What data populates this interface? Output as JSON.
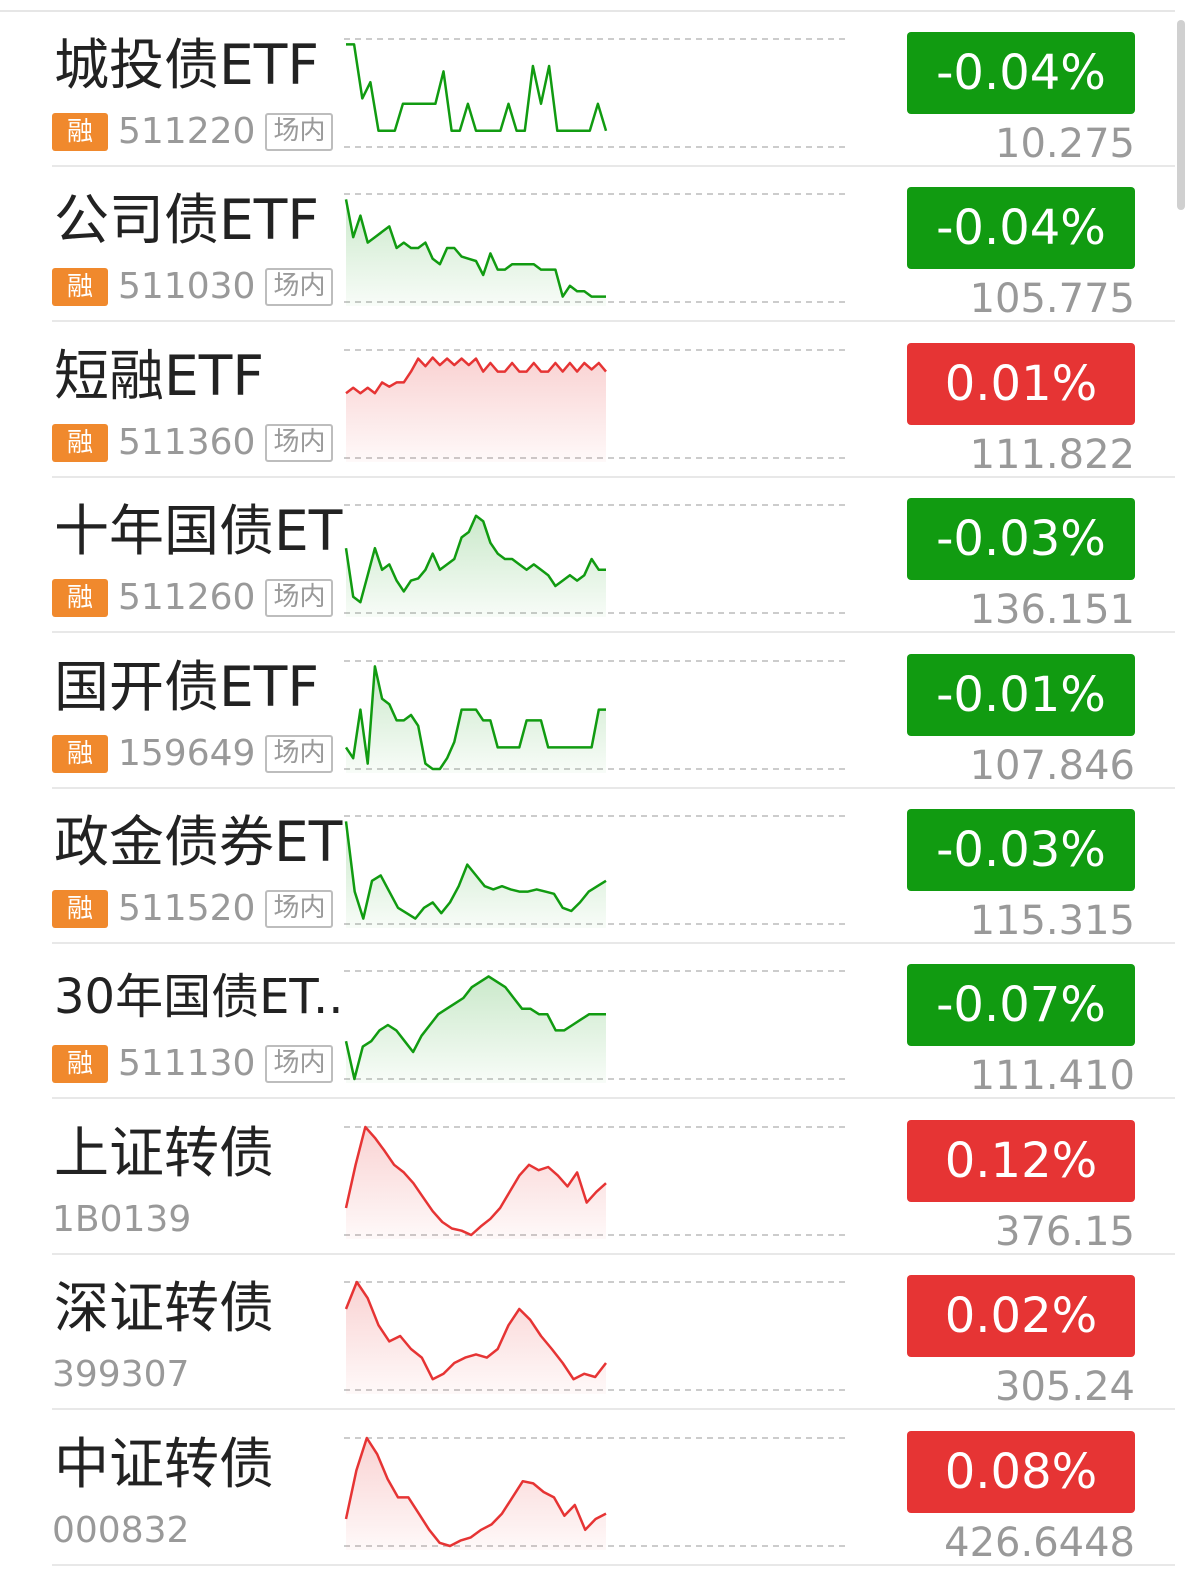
{
  "colors": {
    "down": "#119b11",
    "up": "#e63434",
    "margin_badge": "#f0892d"
  },
  "rows": [
    {
      "name": "城投债ETF",
      "code": "511220",
      "margin_badge": "融",
      "exchange_badge": "场内",
      "change": "-0.04%",
      "direction": "down",
      "price": "10.275",
      "spark": [
        0.95,
        0.95,
        0.45,
        0.6,
        0.15,
        0.15,
        0.15,
        0.4,
        0.4,
        0.4,
        0.4,
        0.4,
        0.7,
        0.15,
        0.15,
        0.4,
        0.15,
        0.15,
        0.15,
        0.15,
        0.4,
        0.15,
        0.15,
        0.75,
        0.4,
        0.75,
        0.15,
        0.15,
        0.15,
        0.15,
        0.15,
        0.4,
        0.15
      ],
      "spark_fill": false
    },
    {
      "name": "公司债ETF",
      "code": "511030",
      "margin_badge": "融",
      "exchange_badge": "场内",
      "change": "-0.04%",
      "direction": "down",
      "price": "105.775",
      "spark": [
        0.95,
        0.6,
        0.8,
        0.55,
        0.6,
        0.65,
        0.7,
        0.5,
        0.55,
        0.5,
        0.5,
        0.55,
        0.4,
        0.35,
        0.5,
        0.5,
        0.42,
        0.4,
        0.38,
        0.25,
        0.45,
        0.3,
        0.3,
        0.35,
        0.35,
        0.35,
        0.35,
        0.3,
        0.3,
        0.3,
        0.05,
        0.15,
        0.1,
        0.1,
        0.05,
        0.05,
        0.05
      ],
      "spark_fill": true
    },
    {
      "name": "短融ETF",
      "code": "511360",
      "margin_badge": "融",
      "exchange_badge": "场内",
      "change": "0.01%",
      "direction": "up",
      "price": "111.822",
      "spark": [
        0.6,
        0.65,
        0.6,
        0.65,
        0.6,
        0.7,
        0.66,
        0.7,
        0.7,
        0.8,
        0.92,
        0.85,
        0.93,
        0.86,
        0.92,
        0.86,
        0.92,
        0.86,
        0.92,
        0.8,
        0.88,
        0.8,
        0.8,
        0.88,
        0.8,
        0.8,
        0.88,
        0.8,
        0.8,
        0.88,
        0.8,
        0.88,
        0.8,
        0.88,
        0.82,
        0.88,
        0.8
      ],
      "spark_fill": true
    },
    {
      "name": "十年国债ETF",
      "code": "511260",
      "margin_badge": "融",
      "exchange_badge": "场内",
      "change": "-0.03%",
      "direction": "down",
      "price": "136.151",
      "spark": [
        0.6,
        0.15,
        0.1,
        0.35,
        0.6,
        0.4,
        0.45,
        0.3,
        0.2,
        0.3,
        0.32,
        0.4,
        0.55,
        0.4,
        0.45,
        0.5,
        0.7,
        0.75,
        0.9,
        0.85,
        0.65,
        0.55,
        0.5,
        0.5,
        0.45,
        0.4,
        0.45,
        0.4,
        0.35,
        0.25,
        0.3,
        0.35,
        0.3,
        0.35,
        0.5,
        0.4,
        0.4
      ],
      "spark_fill": true
    },
    {
      "name": "国开债ETF",
      "code": "159649",
      "margin_badge": "融",
      "exchange_badge": "场内",
      "change": "-0.01%",
      "direction": "down",
      "price": "107.846",
      "spark": [
        0.2,
        0.1,
        0.55,
        0.05,
        0.95,
        0.65,
        0.6,
        0.45,
        0.45,
        0.5,
        0.4,
        0.05,
        0.0,
        0.0,
        0.1,
        0.25,
        0.55,
        0.55,
        0.55,
        0.45,
        0.45,
        0.2,
        0.2,
        0.2,
        0.2,
        0.45,
        0.45,
        0.45,
        0.2,
        0.2,
        0.2,
        0.2,
        0.2,
        0.2,
        0.2,
        0.55,
        0.55
      ],
      "spark_fill": true
    },
    {
      "name": "政金债券ETF",
      "code": "511520",
      "margin_badge": "融",
      "exchange_badge": "场内",
      "change": "-0.03%",
      "direction": "down",
      "price": "115.315",
      "spark": [
        0.95,
        0.3,
        0.05,
        0.4,
        0.45,
        0.3,
        0.15,
        0.1,
        0.05,
        0.15,
        0.2,
        0.1,
        0.2,
        0.35,
        0.55,
        0.45,
        0.35,
        0.32,
        0.35,
        0.32,
        0.3,
        0.3,
        0.32,
        0.3,
        0.28,
        0.15,
        0.12,
        0.2,
        0.3,
        0.35,
        0.4
      ],
      "spark_fill": true
    },
    {
      "name": "30年国债ET...",
      "code": "511130",
      "margin_badge": "融",
      "exchange_badge": "场内",
      "change": "-0.07%",
      "direction": "down",
      "price": "111.410",
      "spark": [
        0.35,
        0.0,
        0.3,
        0.35,
        0.45,
        0.5,
        0.45,
        0.35,
        0.25,
        0.4,
        0.5,
        0.6,
        0.65,
        0.7,
        0.75,
        0.85,
        0.9,
        0.95,
        0.9,
        0.85,
        0.75,
        0.65,
        0.65,
        0.6,
        0.6,
        0.45,
        0.45,
        0.5,
        0.55,
        0.6,
        0.6,
        0.6
      ],
      "spark_fill": true
    },
    {
      "name": "上证转债",
      "code": "1B0139",
      "margin_badge": "",
      "exchange_badge": "",
      "change": "0.12%",
      "direction": "up",
      "price": "376.15",
      "spark": [
        0.25,
        0.65,
        1.0,
        0.9,
        0.78,
        0.65,
        0.58,
        0.48,
        0.35,
        0.22,
        0.12,
        0.06,
        0.04,
        0.0,
        0.08,
        0.15,
        0.25,
        0.4,
        0.55,
        0.65,
        0.6,
        0.63,
        0.55,
        0.45,
        0.58,
        0.3,
        0.4,
        0.48
      ],
      "spark_fill": true
    },
    {
      "name": "深证转债",
      "code": "399307",
      "margin_badge": "",
      "exchange_badge": "",
      "change": "0.02%",
      "direction": "up",
      "price": "305.24",
      "spark": [
        0.75,
        1.0,
        0.85,
        0.6,
        0.45,
        0.5,
        0.38,
        0.3,
        0.1,
        0.15,
        0.25,
        0.3,
        0.33,
        0.3,
        0.38,
        0.6,
        0.75,
        0.65,
        0.5,
        0.38,
        0.25,
        0.1,
        0.15,
        0.12,
        0.25
      ],
      "spark_fill": true
    },
    {
      "name": "中证转债",
      "code": "000832",
      "margin_badge": "",
      "exchange_badge": "",
      "change": "0.08%",
      "direction": "up",
      "price": "426.6448",
      "spark": [
        0.25,
        0.7,
        1.0,
        0.85,
        0.62,
        0.45,
        0.45,
        0.3,
        0.15,
        0.03,
        0.0,
        0.05,
        0.08,
        0.15,
        0.2,
        0.3,
        0.45,
        0.6,
        0.58,
        0.5,
        0.45,
        0.28,
        0.38,
        0.15,
        0.25,
        0.3
      ],
      "spark_fill": true
    }
  ]
}
